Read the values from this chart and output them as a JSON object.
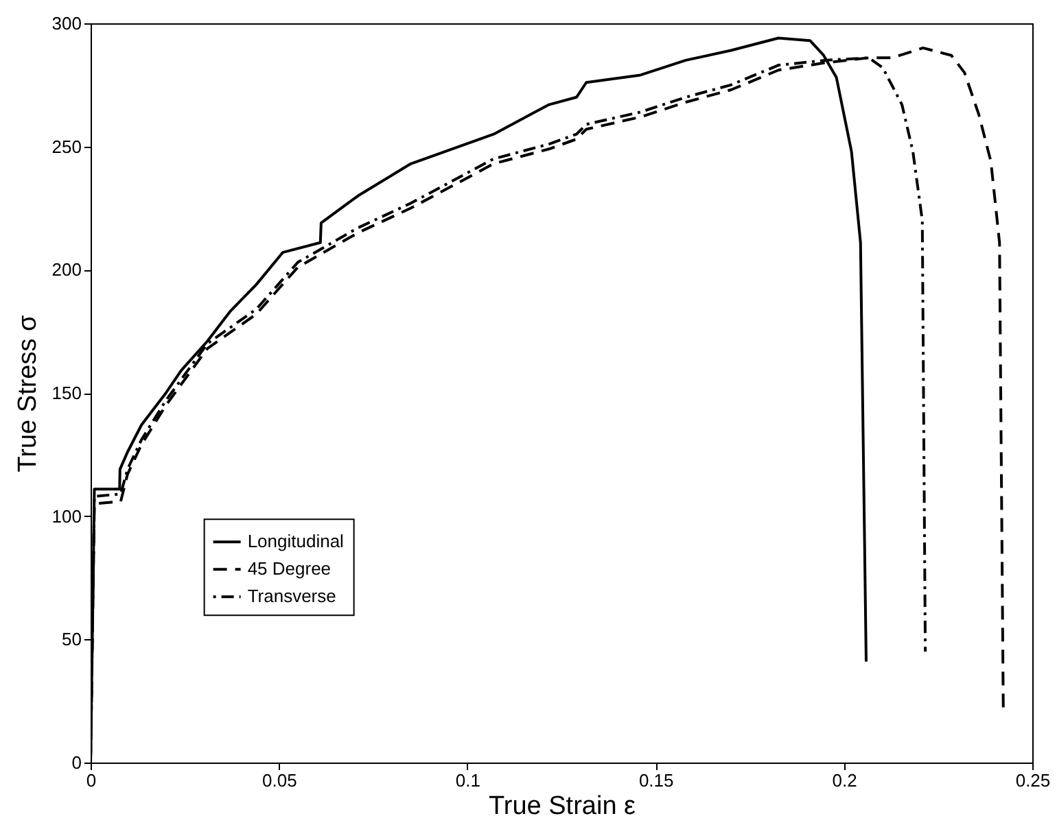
{
  "chart_data": {
    "type": "line",
    "xlabel": "True Strain ε",
    "ylabel": "True Stress σ",
    "xlim": [
      0,
      0.25
    ],
    "ylim": [
      0,
      300
    ],
    "xticks": [
      0,
      0.05,
      0.1,
      0.15,
      0.2,
      0.25
    ],
    "yticks": [
      0,
      50,
      100,
      150,
      200,
      250,
      300
    ],
    "grid": false,
    "legend": "left",
    "marker": "none",
    "series": [
      {
        "name": "Longitudinal",
        "color": "#000000",
        "line_style": "solid",
        "x": [
          0,
          0.001,
          0.0077,
          0.0078,
          0.0098,
          0.0135,
          0.02,
          0.024,
          0.031,
          0.037,
          0.044,
          0.051,
          0.061,
          0.0612,
          0.071,
          0.085,
          0.107,
          0.1217,
          0.129,
          0.1316,
          0.146,
          0.158,
          0.17,
          0.1826,
          0.191,
          0.1946,
          0.198,
          0.202,
          0.2044,
          0.2059
        ],
        "values": [
          0,
          111,
          111,
          119,
          126,
          137,
          150,
          159,
          171,
          183,
          194,
          207,
          211,
          219,
          230,
          243,
          255,
          267,
          270,
          276,
          279,
          285,
          289,
          294,
          293,
          287,
          278,
          248,
          211,
          41
        ]
      },
      {
        "name": "45 Degree",
        "color": "#000000",
        "line_style": "dashed",
        "x": [
          0,
          0.001,
          0.008,
          0.0098,
          0.0135,
          0.02,
          0.031,
          0.044,
          0.055,
          0.071,
          0.085,
          0.107,
          0.1217,
          0.129,
          0.1316,
          0.146,
          0.158,
          0.17,
          0.1826,
          0.195,
          0.2066,
          0.2128,
          0.221,
          0.2285,
          0.232,
          0.2358,
          0.239,
          0.2413,
          0.2423
        ],
        "values": [
          0,
          105,
          106,
          117,
          129,
          145,
          168,
          182,
          201,
          215,
          225,
          243,
          249,
          253,
          257,
          262,
          268,
          273,
          281,
          284,
          286,
          286,
          290,
          287,
          280,
          263,
          244,
          211,
          22
        ]
      },
      {
        "name": "Transverse",
        "color": "#000000",
        "line_style": "dotted",
        "x": [
          0,
          0.001,
          0.008,
          0.0098,
          0.0135,
          0.02,
          0.031,
          0.044,
          0.055,
          0.071,
          0.085,
          0.107,
          0.1217,
          0.129,
          0.1316,
          0.146,
          0.158,
          0.17,
          0.1826,
          0.195,
          0.2066,
          0.2103,
          0.2154,
          0.2183,
          0.2208,
          0.2216
        ],
        "values": [
          0,
          108,
          109,
          119,
          131,
          147,
          170,
          184,
          203,
          217,
          227,
          245,
          251,
          255,
          259,
          264,
          270,
          275,
          283,
          285,
          286,
          282,
          267,
          248,
          220,
          45
        ]
      }
    ]
  }
}
